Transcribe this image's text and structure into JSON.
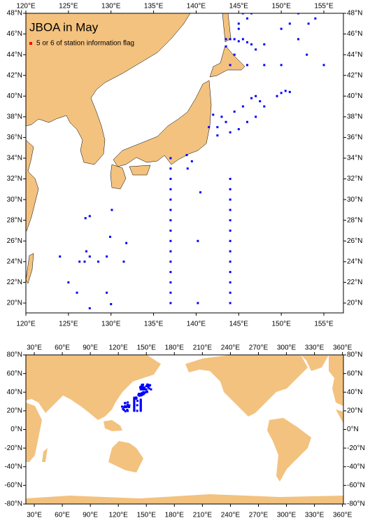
{
  "top_map": {
    "title": "JBOA in May",
    "legend": "5 or 6 of station information flag",
    "legend_color": "#ff0000",
    "marker_color": "#0000ff",
    "land_color": "#f3c27f",
    "lon_range": [
      120,
      157.3
    ],
    "lat_range": [
      19.05,
      48
    ],
    "lon_ticks": [
      {
        "value": 120,
        "label": "120°E"
      },
      {
        "value": 125,
        "label": "125°E"
      },
      {
        "value": 130,
        "label": "130°E"
      },
      {
        "value": 135,
        "label": "135°E"
      },
      {
        "value": 140,
        "label": "140°E"
      },
      {
        "value": 145,
        "label": "145°E"
      },
      {
        "value": 150,
        "label": "150°E"
      },
      {
        "value": 155,
        "label": "155°E"
      }
    ],
    "lat_ticks": [
      {
        "value": 20,
        "label": "20°N"
      },
      {
        "value": 22,
        "label": "22°N"
      },
      {
        "value": 24,
        "label": "24°N"
      },
      {
        "value": 26,
        "label": "26°N"
      },
      {
        "value": 28,
        "label": "28°N"
      },
      {
        "value": 30,
        "label": "30°N"
      },
      {
        "value": 32,
        "label": "32°N"
      },
      {
        "value": 34,
        "label": "34°N"
      },
      {
        "value": 36,
        "label": "36°N"
      },
      {
        "value": 38,
        "label": "38°N"
      },
      {
        "value": 40,
        "label": "40°N"
      },
      {
        "value": 42,
        "label": "42°N"
      },
      {
        "value": 44,
        "label": "44°N"
      },
      {
        "value": 46,
        "label": "46°N"
      },
      {
        "value": 48,
        "label": "48°N"
      }
    ]
  },
  "world_map": {
    "lon_range": [
      21,
      361
    ],
    "lat_range": [
      -80,
      80
    ],
    "lon_ticks": [
      {
        "value": 30,
        "label": "30°E"
      },
      {
        "value": 60,
        "label": "60°E"
      },
      {
        "value": 90,
        "label": "90°E"
      },
      {
        "value": 120,
        "label": "120°E"
      },
      {
        "value": 150,
        "label": "150°E"
      },
      {
        "value": 180,
        "label": "180°E"
      },
      {
        "value": 210,
        "label": "210°E"
      },
      {
        "value": 240,
        "label": "240°E"
      },
      {
        "value": 270,
        "label": "270°E"
      },
      {
        "value": 300,
        "label": "300°E"
      },
      {
        "value": 330,
        "label": "330°E"
      },
      {
        "value": 360,
        "label": "360°E"
      }
    ],
    "lat_ticks": [
      {
        "value": 80,
        "label": "80°N"
      },
      {
        "value": 60,
        "label": "60°N"
      },
      {
        "value": 40,
        "label": "40°N"
      },
      {
        "value": 20,
        "label": "20°N"
      },
      {
        "value": 0,
        "label": "0°N"
      },
      {
        "value": -20,
        "label": "-20°N"
      },
      {
        "value": -40,
        "label": "-40°N"
      },
      {
        "value": -60,
        "label": "-60°N"
      },
      {
        "value": -80,
        "label": "-80°N"
      }
    ]
  },
  "stations": {
    "lon": [
      137,
      137,
      137,
      137,
      137,
      137,
      137,
      137,
      137,
      137,
      137,
      137,
      137,
      137,
      137,
      144,
      144,
      144,
      144,
      144,
      144,
      144,
      144,
      144,
      144,
      144,
      144,
      144,
      140.2,
      138.9,
      139.5,
      139,
      140.5,
      140.2,
      127.5,
      127,
      126.3,
      126.9,
      127.1,
      127.5,
      128.5,
      129.5,
      125,
      124,
      126,
      127.5,
      129.5,
      130,
      130.1,
      129.9,
      131.8,
      131.5,
      150,
      150.5,
      151,
      149.5,
      147,
      146.5,
      147.5,
      145.5,
      144.5,
      143.5,
      142.5,
      142,
      143,
      144,
      145,
      146,
      147,
      148,
      142.5,
      141.5,
      143.5,
      144,
      144.5,
      145,
      145.5,
      146,
      146.5,
      147,
      143.5,
      144.5,
      145,
      145.5,
      146,
      145,
      146.5,
      151,
      152,
      153.2,
      154,
      148,
      150,
      151,
      152,
      153,
      155,
      148,
      150,
      146,
      144
    ],
    "lat": [
      34,
      33,
      32,
      31,
      30,
      29,
      28,
      27,
      26,
      25,
      24,
      23,
      22,
      21,
      20,
      32,
      31,
      30,
      29,
      28,
      27,
      26,
      25,
      24,
      23,
      22,
      21,
      20,
      20,
      34.3,
      33.7,
      33,
      30.7,
      26,
      28.4,
      28.2,
      24,
      24,
      25,
      24.5,
      24,
      24.5,
      22,
      24.5,
      21,
      19.5,
      21,
      19.9,
      29,
      26.4,
      25.8,
      24,
      40.3,
      40.5,
      40.4,
      40,
      40,
      39.8,
      39.5,
      39,
      38.5,
      37.5,
      37,
      38.2,
      38,
      36.5,
      36.8,
      37.5,
      38,
      39,
      36.2,
      37,
      45.5,
      45.5,
      45.5,
      45.3,
      45.5,
      45.2,
      45,
      44.5,
      44.8,
      44,
      47,
      48,
      47.5,
      46.5,
      48,
      48.2,
      48,
      47,
      47.5,
      45,
      46.5,
      47,
      45.5,
      44,
      43,
      43,
      43,
      43,
      43
    ]
  }
}
